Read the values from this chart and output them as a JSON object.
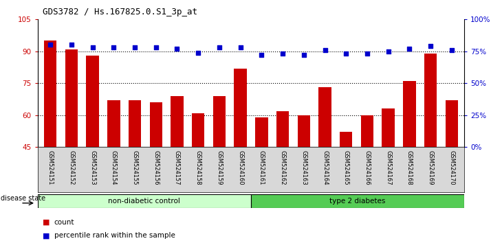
{
  "title": "GDS3782 / Hs.167825.0.S1_3p_at",
  "samples": [
    "GSM524151",
    "GSM524152",
    "GSM524153",
    "GSM524154",
    "GSM524155",
    "GSM524156",
    "GSM524157",
    "GSM524158",
    "GSM524159",
    "GSM524160",
    "GSM524161",
    "GSM524162",
    "GSM524163",
    "GSM524164",
    "GSM524165",
    "GSM524166",
    "GSM524167",
    "GSM524168",
    "GSM524169",
    "GSM524170"
  ],
  "counts": [
    95,
    91,
    88,
    67,
    67,
    66,
    69,
    61,
    69,
    82,
    59,
    62,
    60,
    73,
    52,
    60,
    63,
    76,
    89,
    67
  ],
  "percentiles": [
    80,
    80,
    78,
    78,
    78,
    78,
    77,
    74,
    78,
    78,
    72,
    73,
    72,
    76,
    73,
    73,
    75,
    77,
    79,
    76
  ],
  "ylim_left": [
    45,
    105
  ],
  "ylim_right": [
    0,
    100
  ],
  "yticks_left": [
    45,
    60,
    75,
    90,
    105
  ],
  "ytick_labels_left": [
    "45",
    "60",
    "75",
    "90",
    "105"
  ],
  "yticks_right": [
    0,
    25,
    50,
    75,
    100
  ],
  "ytick_labels_right": [
    "0%",
    "25%",
    "50%",
    "75%",
    "100%"
  ],
  "bar_color": "#cc0000",
  "dot_color": "#0000cc",
  "bar_width": 0.6,
  "group1_label": "non-diabetic control",
  "group2_label": "type 2 diabetes",
  "group1_color": "#ccffcc",
  "group2_color": "#55cc55",
  "group1_count": 10,
  "group2_count": 10,
  "disease_state_label": "disease state",
  "legend_count_label": "count",
  "legend_percentile_label": "percentile rank within the sample",
  "bg_color": "#ffffff",
  "tick_area_color": "#d8d8d8"
}
